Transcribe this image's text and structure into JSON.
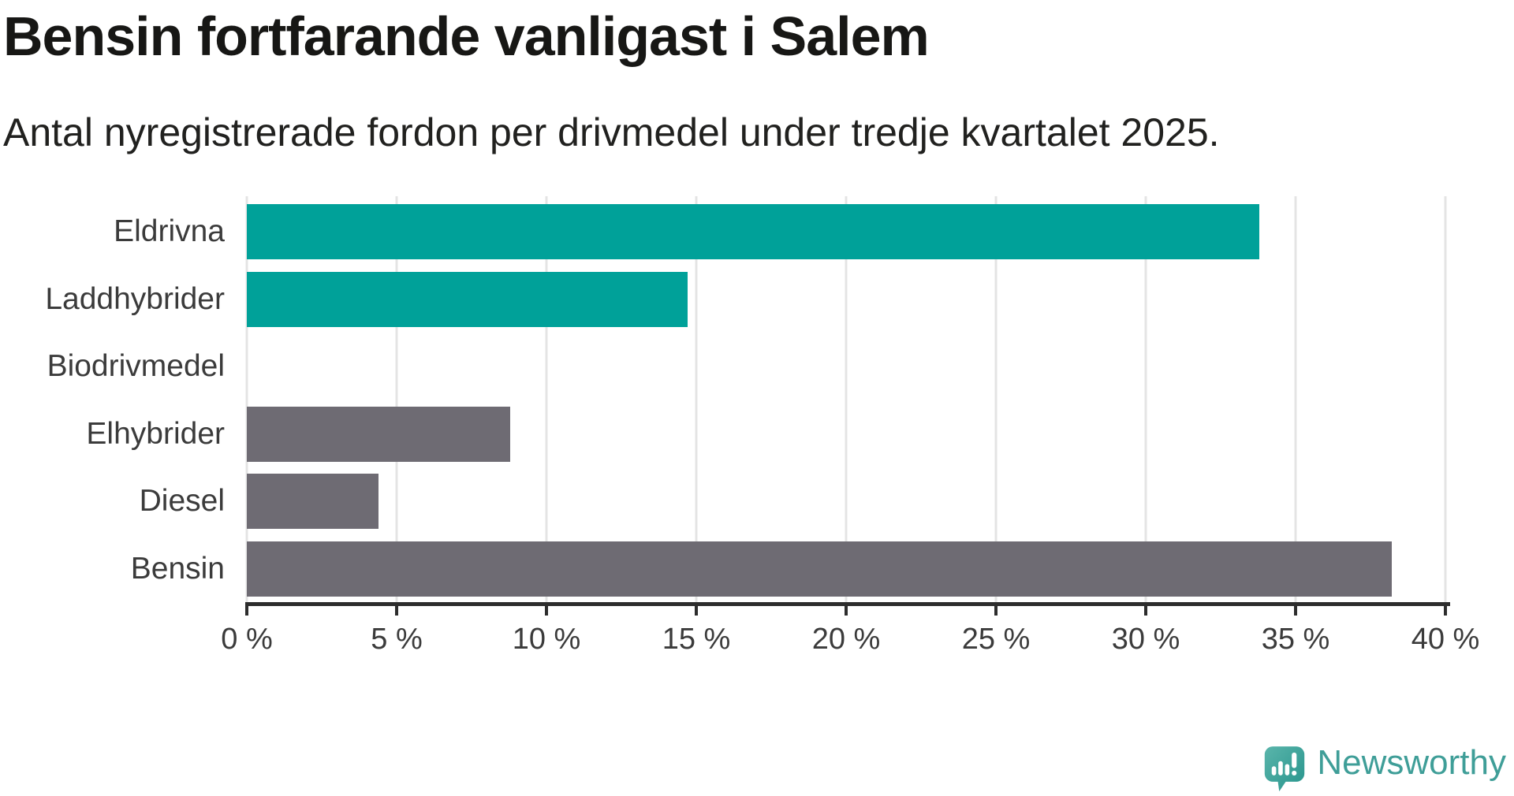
{
  "header": {
    "title": "Bensin fortfarande vanligast i Salem",
    "subtitle": "Antal nyregistrerade fordon per drivmedel under tredje kvartalet 2025."
  },
  "chart_data": {
    "type": "bar",
    "orientation": "horizontal",
    "title": "Bensin fortfarande vanligast i Salem",
    "subtitle": "Antal nyregistrerade fordon per drivmedel under tredje kvartalet 2025.",
    "categories": [
      "Eldrivna",
      "Laddhybrider",
      "Biodrivmedel",
      "Elhybrider",
      "Diesel",
      "Bensin"
    ],
    "values": [
      33.8,
      14.7,
      0,
      8.8,
      4.4,
      38.2
    ],
    "unit": "%",
    "bar_colors": [
      "#00a199",
      "#00a199",
      "#6e6b73",
      "#6e6b73",
      "#6e6b73",
      "#6e6b73"
    ],
    "xlabel": "",
    "ylabel": "",
    "xlim": [
      0,
      40
    ],
    "xticks": [
      0,
      5,
      10,
      15,
      20,
      25,
      30,
      35,
      40
    ],
    "xtick_labels": [
      "0 %",
      "5 %",
      "10 %",
      "15 %",
      "20 %",
      "25 %",
      "30 %",
      "35 %",
      "40 %"
    ],
    "grid": "vertical-only",
    "legend": "none"
  },
  "footer": {
    "brand": "Newsworthy"
  },
  "colors": {
    "teal": "#00a199",
    "gray": "#6e6b73",
    "axis": "#2d2d2d",
    "gridline": "#e4e4e4",
    "brand_teal": "#3f9e98",
    "background": "#ffffff"
  },
  "icons": {
    "brand_logo": "newsworthy-speech-bubble-bar-chart-icon"
  }
}
